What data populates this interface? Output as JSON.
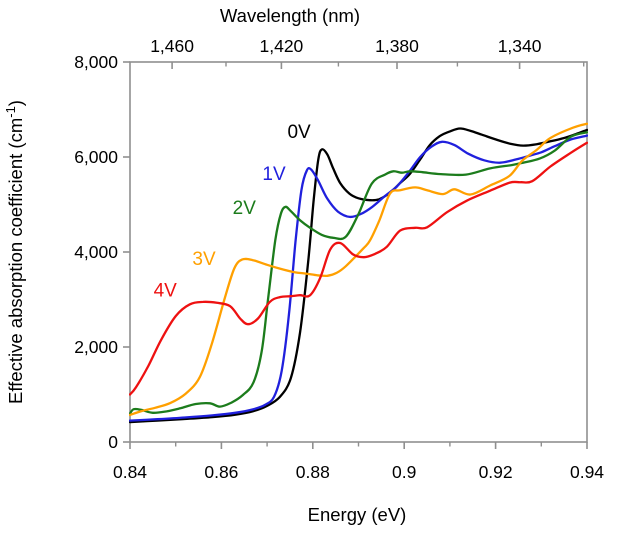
{
  "chart_data": {
    "type": "line",
    "title": "",
    "x_axis": {
      "label": "Energy (eV)",
      "min": 0.84,
      "max": 0.94,
      "major_ticks": [
        0.84,
        0.86,
        0.88,
        0.9,
        0.92,
        0.94
      ],
      "major_tick_labels": [
        "0.84",
        "0.86",
        "0.88",
        "0.9",
        "0.92",
        "0.94"
      ],
      "minor_ticks": [
        0.85,
        0.87,
        0.89,
        0.91,
        0.93
      ]
    },
    "x2_axis": {
      "label": "Wavelength (nm)",
      "ev_nm_conversion": 1239.84,
      "major_ticks_nm": [
        1460,
        1420,
        1380,
        1340
      ],
      "major_tick_labels": [
        "1,460",
        "1,420",
        "1,380",
        "1,340"
      ],
      "minor_ticks_nm": [
        1440,
        1400,
        1360,
        1320
      ]
    },
    "y_axis": {
      "label": "Effective absorption coefficient (cm⁻¹)",
      "label_parts": [
        "Effective absorption coefficient (cm",
        "-1",
        ")"
      ],
      "min": 0,
      "max": 8000,
      "major_ticks": [
        0,
        2000,
        4000,
        6000,
        8000
      ],
      "major_tick_labels": [
        "0",
        "2,000",
        "4,000",
        "6,000",
        "8,000"
      ]
    },
    "axis_color": "#8f8f8f",
    "text_color": "#000000",
    "legend_position": "inline-curve-labels",
    "grid": false,
    "series": [
      {
        "name": "0V",
        "color": "#000000",
        "label_pos": {
          "x": 0.877,
          "y": 6400
        },
        "points": [
          [
            0.84,
            420
          ],
          [
            0.846,
            450
          ],
          [
            0.852,
            485
          ],
          [
            0.858,
            525
          ],
          [
            0.863,
            575
          ],
          [
            0.867,
            650
          ],
          [
            0.87,
            760
          ],
          [
            0.8728,
            950
          ],
          [
            0.8752,
            1350
          ],
          [
            0.8772,
            2300
          ],
          [
            0.879,
            3800
          ],
          [
            0.8802,
            5100
          ],
          [
            0.8812,
            5950
          ],
          [
            0.882,
            6160
          ],
          [
            0.8832,
            6050
          ],
          [
            0.8845,
            5750
          ],
          [
            0.886,
            5450
          ],
          [
            0.888,
            5230
          ],
          [
            0.89,
            5130
          ],
          [
            0.8925,
            5090
          ],
          [
            0.8945,
            5110
          ],
          [
            0.8969,
            5250
          ],
          [
            0.8991,
            5450
          ],
          [
            0.9013,
            5650
          ],
          [
            0.9035,
            5950
          ],
          [
            0.9056,
            6250
          ],
          [
            0.9078,
            6440
          ],
          [
            0.91,
            6540
          ],
          [
            0.9122,
            6600
          ],
          [
            0.9145,
            6550
          ],
          [
            0.917,
            6470
          ],
          [
            0.92,
            6370
          ],
          [
            0.9232,
            6280
          ],
          [
            0.926,
            6240
          ],
          [
            0.929,
            6270
          ],
          [
            0.932,
            6330
          ],
          [
            0.935,
            6400
          ],
          [
            0.9375,
            6480
          ],
          [
            0.94,
            6570
          ]
        ]
      },
      {
        "name": "1V",
        "color": "#2020dd",
        "label_pos": {
          "x": 0.8715,
          "y": 5520
        },
        "points": [
          [
            0.84,
            450
          ],
          [
            0.846,
            480
          ],
          [
            0.852,
            515
          ],
          [
            0.858,
            560
          ],
          [
            0.863,
            615
          ],
          [
            0.867,
            690
          ],
          [
            0.8695,
            780
          ],
          [
            0.8715,
            950
          ],
          [
            0.8732,
            1500
          ],
          [
            0.8748,
            2700
          ],
          [
            0.8762,
            4200
          ],
          [
            0.8775,
            5300
          ],
          [
            0.8787,
            5720
          ],
          [
            0.8797,
            5730
          ],
          [
            0.8812,
            5500
          ],
          [
            0.8832,
            5120
          ],
          [
            0.8855,
            4850
          ],
          [
            0.8881,
            4740
          ],
          [
            0.8905,
            4800
          ],
          [
            0.893,
            4950
          ],
          [
            0.8958,
            5180
          ],
          [
            0.8984,
            5380
          ],
          [
            0.901,
            5680
          ],
          [
            0.9035,
            6000
          ],
          [
            0.906,
            6220
          ],
          [
            0.9083,
            6320
          ],
          [
            0.911,
            6250
          ],
          [
            0.914,
            6070
          ],
          [
            0.9175,
            5930
          ],
          [
            0.921,
            5880
          ],
          [
            0.9245,
            5950
          ],
          [
            0.9275,
            6030
          ],
          [
            0.93,
            6100
          ],
          [
            0.933,
            6230
          ],
          [
            0.9365,
            6370
          ],
          [
            0.94,
            6450
          ]
        ]
      },
      {
        "name": "2V",
        "color": "#1c7c1c",
        "label_pos": {
          "x": 0.865,
          "y": 4800
        },
        "points": [
          [
            0.84,
            600
          ],
          [
            0.8408,
            690
          ],
          [
            0.8425,
            675
          ],
          [
            0.845,
            615
          ],
          [
            0.848,
            645
          ],
          [
            0.851,
            710
          ],
          [
            0.8544,
            800
          ],
          [
            0.8575,
            815
          ],
          [
            0.8597,
            745
          ],
          [
            0.8622,
            830
          ],
          [
            0.8647,
            990
          ],
          [
            0.867,
            1250
          ],
          [
            0.8688,
            1900
          ],
          [
            0.8702,
            3000
          ],
          [
            0.8718,
            4250
          ],
          [
            0.873,
            4800
          ],
          [
            0.874,
            4950
          ],
          [
            0.8752,
            4860
          ],
          [
            0.8772,
            4670
          ],
          [
            0.8794,
            4510
          ],
          [
            0.882,
            4360
          ],
          [
            0.8845,
            4300
          ],
          [
            0.8872,
            4320
          ],
          [
            0.89,
            4800
          ],
          [
            0.8929,
            5440
          ],
          [
            0.8958,
            5630
          ],
          [
            0.8976,
            5700
          ],
          [
            0.8995,
            5670
          ],
          [
            0.9013,
            5700
          ],
          [
            0.904,
            5680
          ],
          [
            0.908,
            5640
          ],
          [
            0.9135,
            5630
          ],
          [
            0.9188,
            5760
          ],
          [
            0.9235,
            5830
          ],
          [
            0.926,
            5880
          ],
          [
            0.9297,
            5970
          ],
          [
            0.933,
            6140
          ],
          [
            0.9365,
            6430
          ],
          [
            0.94,
            6520
          ]
        ]
      },
      {
        "name": "3V",
        "color": "#ffa000",
        "label_pos": {
          "x": 0.8562,
          "y": 3730
        },
        "points": [
          [
            0.84,
            570
          ],
          [
            0.8425,
            650
          ],
          [
            0.8455,
            720
          ],
          [
            0.8488,
            820
          ],
          [
            0.8522,
            1020
          ],
          [
            0.8553,
            1370
          ],
          [
            0.858,
            2100
          ],
          [
            0.8608,
            3050
          ],
          [
            0.8628,
            3650
          ],
          [
            0.8645,
            3840
          ],
          [
            0.8668,
            3830
          ],
          [
            0.87,
            3730
          ],
          [
            0.8728,
            3650
          ],
          [
            0.876,
            3575
          ],
          [
            0.8785,
            3545
          ],
          [
            0.881,
            3510
          ],
          [
            0.8832,
            3500
          ],
          [
            0.8852,
            3560
          ],
          [
            0.8872,
            3700
          ],
          [
            0.891,
            4070
          ],
          [
            0.8925,
            4240
          ],
          [
            0.8945,
            4650
          ],
          [
            0.8969,
            5230
          ],
          [
            0.8991,
            5300
          ],
          [
            0.9024,
            5360
          ],
          [
            0.905,
            5300
          ],
          [
            0.9085,
            5220
          ],
          [
            0.911,
            5320
          ],
          [
            0.9145,
            5210
          ],
          [
            0.9188,
            5400
          ],
          [
            0.923,
            5600
          ],
          [
            0.9258,
            5920
          ],
          [
            0.929,
            6150
          ],
          [
            0.932,
            6400
          ],
          [
            0.937,
            6620
          ],
          [
            0.94,
            6700
          ]
        ]
      },
      {
        "name": "4V",
        "color": "#ee1111",
        "label_pos": {
          "x": 0.8477,
          "y": 3060
        },
        "points": [
          [
            0.84,
            1000
          ],
          [
            0.8413,
            1150
          ],
          [
            0.844,
            1600
          ],
          [
            0.8468,
            2150
          ],
          [
            0.85,
            2650
          ],
          [
            0.8531,
            2900
          ],
          [
            0.856,
            2950
          ],
          [
            0.859,
            2930
          ],
          [
            0.8619,
            2860
          ],
          [
            0.8641,
            2600
          ],
          [
            0.8658,
            2480
          ],
          [
            0.868,
            2600
          ],
          [
            0.8706,
            2950
          ],
          [
            0.8728,
            3050
          ],
          [
            0.8752,
            3070
          ],
          [
            0.8772,
            3090
          ],
          [
            0.8794,
            3090
          ],
          [
            0.8816,
            3450
          ],
          [
            0.8838,
            4050
          ],
          [
            0.886,
            4190
          ],
          [
            0.8888,
            3950
          ],
          [
            0.8912,
            3890
          ],
          [
            0.8936,
            3960
          ],
          [
            0.8962,
            4110
          ],
          [
            0.8991,
            4450
          ],
          [
            0.9024,
            4510
          ],
          [
            0.905,
            4520
          ],
          [
            0.9094,
            4840
          ],
          [
            0.9137,
            5080
          ],
          [
            0.9188,
            5290
          ],
          [
            0.9231,
            5460
          ],
          [
            0.9255,
            5470
          ],
          [
            0.928,
            5490
          ],
          [
            0.932,
            5800
          ],
          [
            0.9365,
            6090
          ],
          [
            0.94,
            6300
          ]
        ]
      }
    ]
  }
}
